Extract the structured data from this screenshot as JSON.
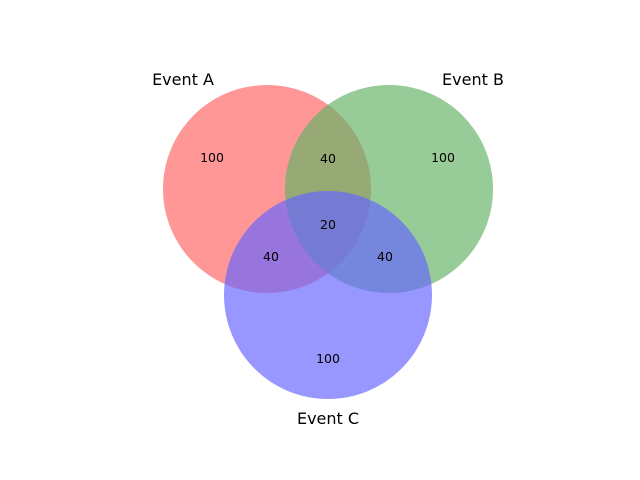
{
  "sets": [
    {
      "id": "A",
      "label": "Event A",
      "color": "#ff6666"
    },
    {
      "id": "B",
      "label": "Event B",
      "color": "#66b266"
    },
    {
      "id": "C",
      "label": "Event C",
      "color": "#6666ff"
    }
  ],
  "regions": {
    "A_only": "100",
    "B_only": "100",
    "C_only": "100",
    "AB": "40",
    "AC": "40",
    "BC": "40",
    "ABC": "20"
  }
}
